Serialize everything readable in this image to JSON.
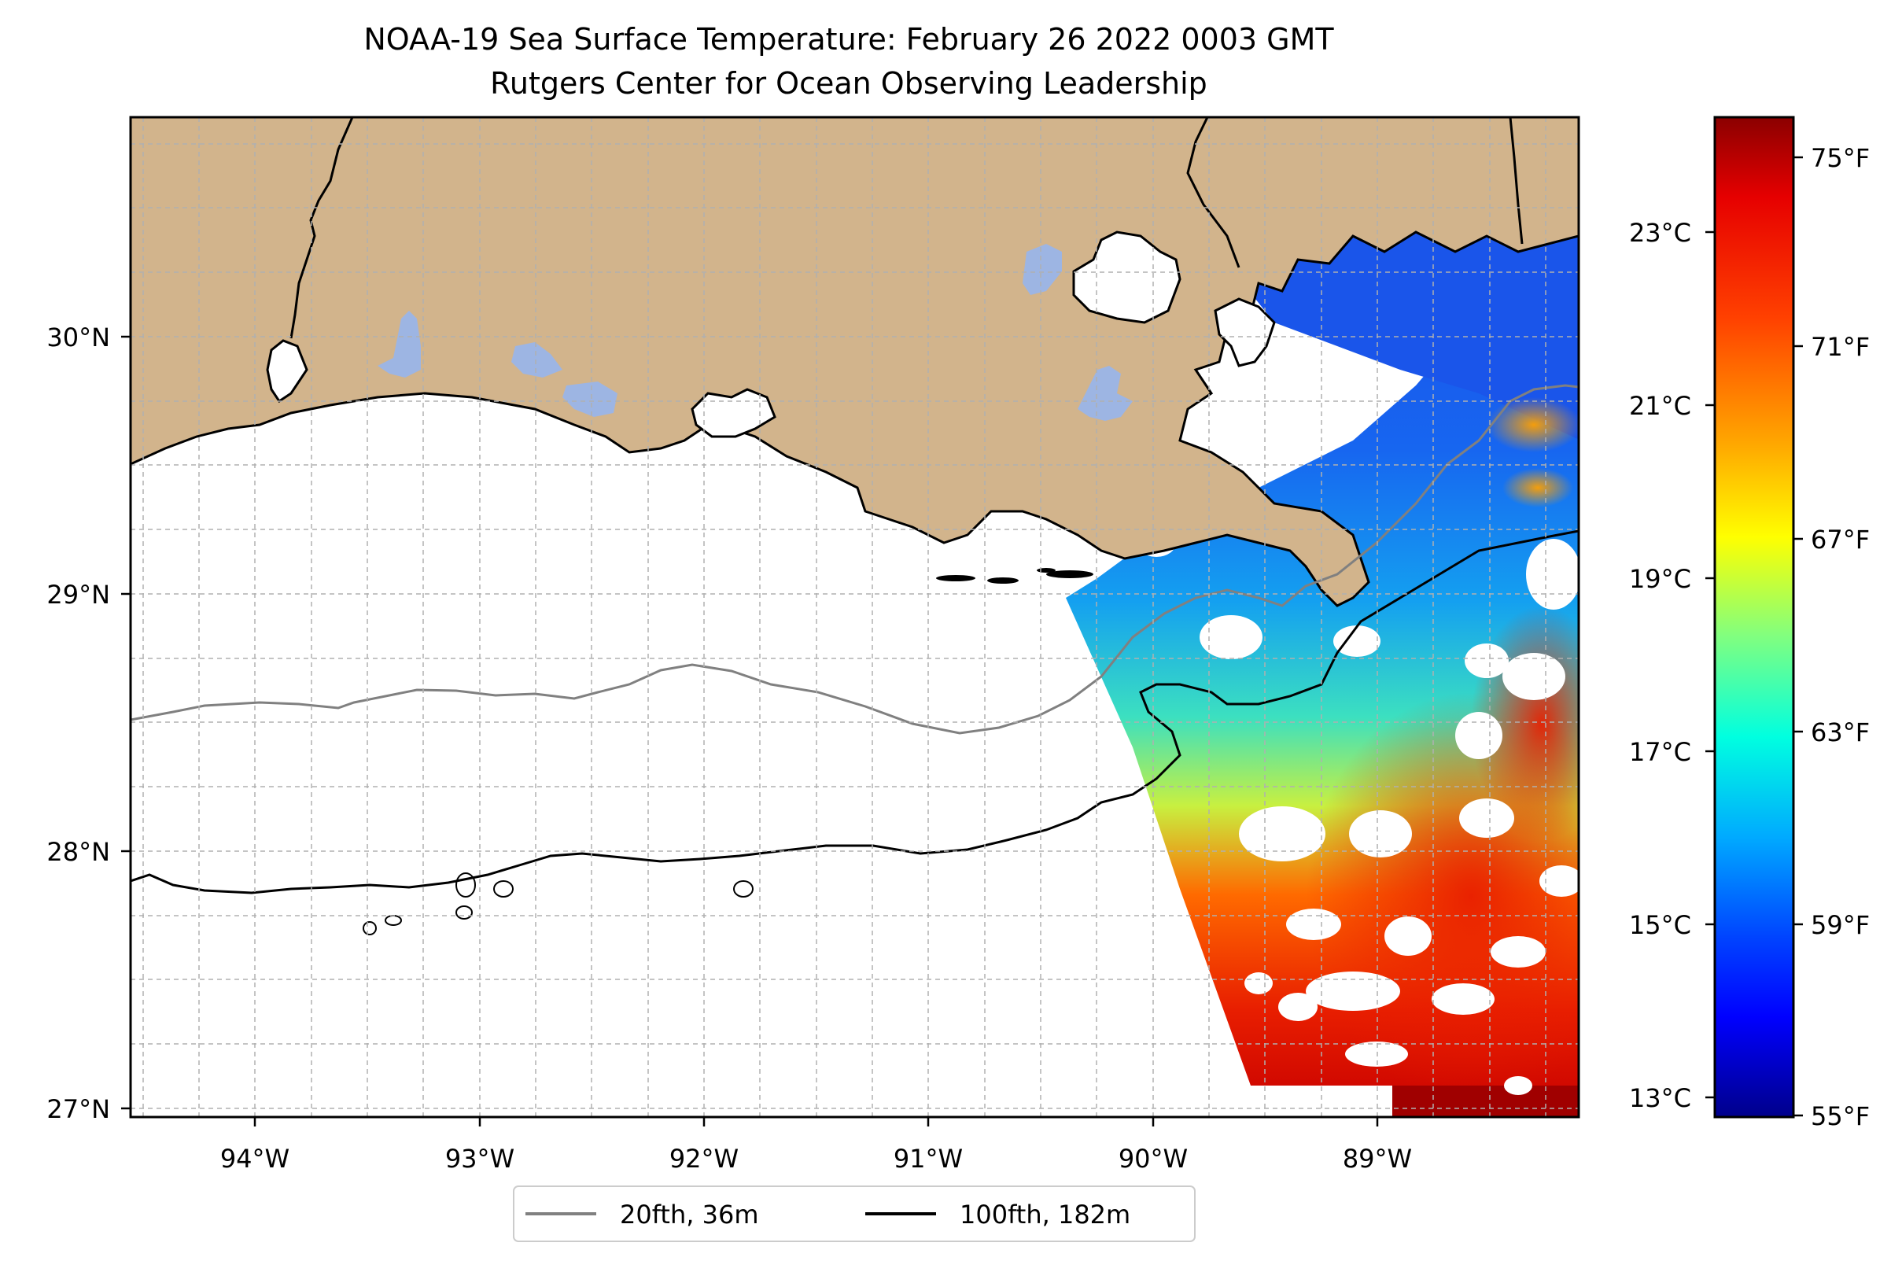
{
  "title": {
    "line1": "NOAA-19 Sea Surface Temperature: February 26 2022 0003 GMT",
    "line2": "Rutgers Center for Ocean Observing Leadership"
  },
  "map": {
    "lon_range": [
      -94.55,
      -88.1
    ],
    "lat_range": [
      26.93,
      30.83
    ],
    "lon_ticks": [
      "94°W",
      "93°W",
      "92°W",
      "91°W",
      "90°W",
      "89°W"
    ],
    "lat_ticks": [
      "30°N",
      "29°N",
      "28°N",
      "27°N"
    ],
    "grid": true,
    "colors": {
      "land": "#d2b48c",
      "lakes": "#9db5e3",
      "no_data": "#ffffff",
      "contour_20fth": "#808080",
      "contour_100fth": "#000000"
    }
  },
  "legend": {
    "placement": "bottom-center",
    "items": [
      {
        "label": "20fth, 36m",
        "color": "#808080"
      },
      {
        "label": "100fth, 182m",
        "color": "#000000"
      }
    ]
  },
  "colorbar": {
    "colormap": "jet",
    "celsius_ticks": [
      "23°C",
      "21°C",
      "19°C",
      "17°C",
      "15°C",
      "13°C"
    ],
    "fahrenheit_ticks": [
      "75°F",
      "71°F",
      "67°F",
      "63°F",
      "59°F",
      "55°F"
    ],
    "range_f": [
      55,
      76
    ]
  }
}
